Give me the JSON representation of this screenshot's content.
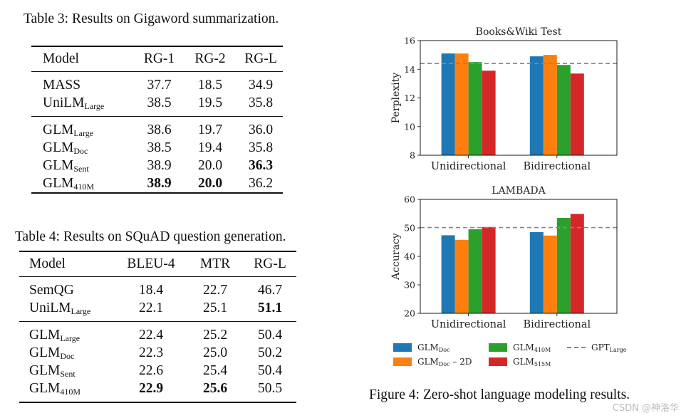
{
  "table3": {
    "caption": "Table 3: Results on Gigaword summarization.",
    "headers": [
      "Model",
      "RG-1",
      "RG-2",
      "RG-L"
    ],
    "rows": [
      {
        "model": "MASS",
        "sub": "",
        "v": [
          "37.7",
          "18.5",
          "34.9"
        ]
      },
      {
        "model": "UniLM",
        "sub": "Large",
        "v": [
          "38.5",
          "19.5",
          "35.8"
        ]
      },
      {
        "model": "GLM",
        "sub": "Large",
        "v": [
          "38.6",
          "19.7",
          "36.0"
        ]
      },
      {
        "model": "GLM",
        "sub": "Doc",
        "v": [
          "38.5",
          "19.4",
          "35.8"
        ]
      },
      {
        "model": "GLM",
        "sub": "Sent",
        "v": [
          "38.9",
          "20.0",
          "36.3"
        ]
      },
      {
        "model": "GLM",
        "sub": "410M",
        "v": [
          "38.9",
          "20.0",
          "36.2"
        ]
      }
    ]
  },
  "table4": {
    "caption": "Table 4: Results on SQuAD question generation.",
    "headers": [
      "Model",
      "BLEU-4",
      "MTR",
      "RG-L"
    ],
    "rows": [
      {
        "model": "SemQG",
        "sub": "",
        "v": [
          "18.4",
          "22.7",
          "46.7"
        ]
      },
      {
        "model": "UniLM",
        "sub": "Large",
        "v": [
          "22.1",
          "25.1",
          "51.1"
        ]
      },
      {
        "model": "GLM",
        "sub": "Large",
        "v": [
          "22.4",
          "25.2",
          "50.4"
        ]
      },
      {
        "model": "GLM",
        "sub": "Doc",
        "v": [
          "22.3",
          "25.0",
          "50.2"
        ]
      },
      {
        "model": "GLM",
        "sub": "Sent",
        "v": [
          "22.6",
          "25.4",
          "50.4"
        ]
      },
      {
        "model": "GLM",
        "sub": "410M",
        "v": [
          "22.9",
          "25.6",
          "50.5"
        ]
      }
    ]
  },
  "chart_data": [
    {
      "type": "bar",
      "title": "Books&Wiki Test",
      "ylabel": "Perplexity",
      "xlabel": "",
      "categories": [
        "Unidirectional",
        "Bidirectional"
      ],
      "ylim": [
        8,
        16
      ],
      "yticks": [
        "8",
        "10",
        "12",
        "14",
        "16"
      ],
      "series": [
        {
          "name": "GLM_Doc",
          "values": [
            15.1,
            14.9
          ]
        },
        {
          "name": "GLM_Doc – 2D",
          "values": [
            15.1,
            15.0
          ]
        },
        {
          "name": "GLM_410M",
          "values": [
            14.5,
            14.3
          ]
        },
        {
          "name": "GLM_515M",
          "values": [
            13.9,
            13.7
          ]
        }
      ],
      "reference_line": {
        "name": "GPT_Large",
        "value": 14.4
      }
    },
    {
      "type": "bar",
      "title": "LAMBADA",
      "ylabel": "Accuracy",
      "xlabel": "",
      "categories": [
        "Unidirectional",
        "Bidirectional"
      ],
      "ylim": [
        20,
        60
      ],
      "yticks": [
        "20",
        "30",
        "40",
        "50",
        "60"
      ],
      "series": [
        {
          "name": "GLM_Doc",
          "values": [
            47.4,
            48.5
          ]
        },
        {
          "name": "GLM_Doc – 2D",
          "values": [
            45.8,
            47.3
          ]
        },
        {
          "name": "GLM_410M",
          "values": [
            49.5,
            53.5
          ]
        },
        {
          "name": "GLM_515M",
          "values": [
            50.3,
            54.9
          ]
        }
      ],
      "reference_line": {
        "name": "GPT_Large",
        "value": 50.1
      }
    }
  ],
  "colors": {
    "glm_doc": "#1f77b4",
    "glm_doc_2d": "#ff7f0e",
    "glm_410m": "#2ca02c",
    "glm_515m": "#d62728",
    "gpt_large": "#888888"
  },
  "legend": {
    "glm_doc": {
      "base": "GLM",
      "sub": "Doc",
      "suffix": ""
    },
    "glm_doc_2d": {
      "base": "GLM",
      "sub": "Doc",
      "suffix": " – 2D"
    },
    "glm_410m": {
      "base": "GLM",
      "sub": "410M",
      "suffix": ""
    },
    "glm_515m": {
      "base": "GLM",
      "sub": "515M",
      "suffix": ""
    },
    "gpt_large": {
      "base": "GPT",
      "sub": "Large",
      "suffix": ""
    }
  },
  "figure_caption": "Figure 4: Zero-shot language modeling results.",
  "watermark": "CSDN @神洛华"
}
